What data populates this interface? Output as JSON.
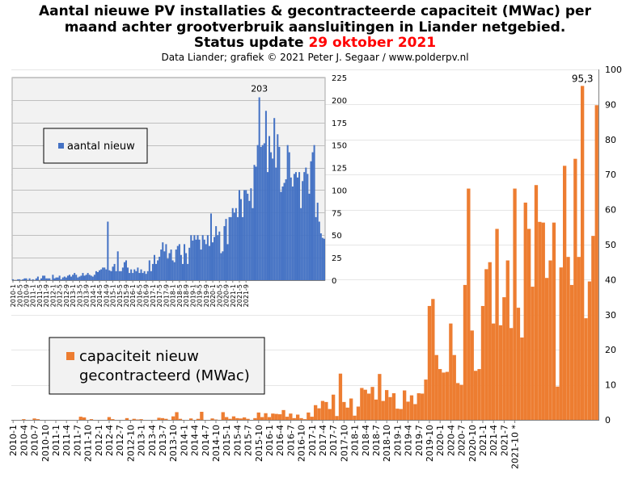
{
  "title": {
    "line1": "Aantal nieuwe PV installaties & gecontracteerde capaciteit (MWac) per",
    "line2": "maand achter grootverbruik aansluitingen in Liander netgebied.",
    "line3_prefix": "Status update ",
    "line3_date": "29 oktober 2021"
  },
  "subtitle": "Data Liander; grafiek © 2021 Peter J. Segaar / www.polderpv.nl",
  "colors": {
    "orange": "#ED7D31",
    "blue": "#4472C4",
    "date_red": "#ff0000",
    "inset_bg": "#f2f2f2"
  },
  "chart_data": [
    {
      "type": "bar",
      "name": "capaciteit",
      "legend": "capaciteit nieuw gecontracteerd (MWac)",
      "legend_lines": [
        "capaciteit nieuw",
        "gecontracteerd (MWac)"
      ],
      "legend_placement": "left-middle",
      "start": "2010-1",
      "x_tick_labels": [
        "2010-1",
        "2010-4",
        "2010-7",
        "2010-10",
        "2011-1",
        "2011-4",
        "2011-7",
        "2011-10",
        "2012-1",
        "2012-4",
        "2012-7",
        "2012-10",
        "2013-1",
        "2013-4",
        "2013-7",
        "2013-10",
        "2014-1",
        "2014-4",
        "2014-7",
        "2014-10",
        "2015-1",
        "2015-4",
        "2015-7",
        "2015-10",
        "2016-1",
        "2016-4",
        "2016-7",
        "2016-10",
        "2017-1",
        "2017-4",
        "2017-7",
        "2017-10",
        "2018-1",
        "2018-4",
        "2018-7",
        "2018-10",
        "2019-1",
        "2019-4",
        "2019-7",
        "2019-10",
        "2020-1",
        "2020-4",
        "2020-7",
        "2020-10",
        "2021-1",
        "2021-4",
        "2021-7",
        "2021-10 *"
      ],
      "values": [
        0,
        0,
        0,
        0.2,
        0,
        0,
        0.4,
        0.2,
        0,
        0,
        0,
        0,
        0,
        0,
        0,
        0,
        0,
        0,
        0,
        0.9,
        0.7,
        0,
        0.2,
        0,
        0,
        0,
        0,
        0.8,
        0.2,
        0,
        0,
        0,
        0.5,
        0,
        0.3,
        0.1,
        0.2,
        0,
        0,
        0,
        0,
        0.6,
        0.5,
        0.3,
        0,
        1.0,
        2.2,
        0.3,
        0,
        0,
        0.4,
        0,
        0.3,
        2.3,
        0,
        0,
        0.4,
        0.1,
        0,
        2.2,
        0.8,
        0.3,
        1.0,
        0.5,
        0.4,
        0.7,
        0.3,
        0,
        0.5,
        2.1,
        0.8,
        1.9,
        0.8,
        1.8,
        1.7,
        1.6,
        2.8,
        0.9,
        1.8,
        0.5,
        1.5,
        0.5,
        0.2,
        2.1,
        0.9,
        4.2,
        3.3,
        5.4,
        5.1,
        3.1,
        7.2,
        1.1,
        13.2,
        5.1,
        3.5,
        6.1,
        1.2,
        3.8,
        9.1,
        8.6,
        7.5,
        9.4,
        5.8,
        13.1,
        5.4,
        8.5,
        6.5,
        7.6,
        3.2,
        3.1,
        8.4,
        5.2,
        7.0,
        4.5,
        7.6,
        7.5,
        11.5,
        32.5,
        34.5,
        18.5,
        14.5,
        13.5,
        13.7,
        27.5,
        18.5,
        10.5,
        10.0,
        38.5,
        66.0,
        25.5,
        14.0,
        14.5,
        32.5,
        43.0,
        45.0,
        27.5,
        54.5,
        27.0,
        35.0,
        45.5,
        26.2,
        66.0,
        32.0,
        23.5,
        62.0,
        54.5,
        38.0,
        67.0,
        56.5,
        56.3,
        40.5,
        45.5,
        56.3,
        9.5,
        43.5,
        72.5,
        46.5,
        38.5,
        74.5,
        46.5,
        95.3,
        29.0,
        39.5,
        52.5,
        89.8
      ],
      "y_ticks": [
        0,
        10,
        20,
        30,
        40,
        50,
        60,
        70,
        80,
        90,
        100
      ],
      "y_axis_side": "right",
      "ylim": [
        0,
        100
      ],
      "annotation": "95,3"
    },
    {
      "type": "bar",
      "name": "aantal",
      "legend": "aantal nieuw",
      "legend_placement": "top-left",
      "start": "2010-1",
      "x_tick_labels": [
        "2010-1",
        "2010-5",
        "2010-9",
        "2011-1",
        "2011-5",
        "2011-9",
        "2012-1",
        "2012-5",
        "2012-9",
        "2013-1",
        "2013-5",
        "2013-9",
        "2014-1",
        "2014-5",
        "2014-9",
        "2015-1",
        "2015-5",
        "2015-9",
        "2016-1",
        "2016-5",
        "2016-9",
        "2017-1",
        "2017-5",
        "2017-9",
        "2018-1",
        "2018-5",
        "2018-9",
        "2019-1",
        "2019-5",
        "2019-9",
        "2020-1",
        "2020-5",
        "2020-9",
        "2021-1",
        "2021-5",
        "2021-9"
      ],
      "values": [
        1,
        0,
        0,
        1,
        1,
        0,
        1,
        2,
        2,
        0,
        2,
        0,
        1,
        0,
        2,
        4,
        0,
        2,
        5,
        5,
        2,
        2,
        2,
        0,
        6,
        2,
        3,
        3,
        5,
        1,
        3,
        4,
        3,
        5,
        6,
        4,
        6,
        8,
        6,
        3,
        4,
        5,
        8,
        5,
        6,
        8,
        6,
        5,
        4,
        6,
        10,
        9,
        11,
        12,
        14,
        14,
        12,
        65,
        11,
        10,
        15,
        18,
        10,
        32,
        10,
        10,
        14,
        20,
        22,
        14,
        8,
        12,
        8,
        12,
        10,
        14,
        8,
        12,
        8,
        10,
        7,
        10,
        22,
        10,
        18,
        28,
        18,
        22,
        26,
        34,
        42,
        32,
        40,
        24,
        30,
        34,
        22,
        20,
        34,
        38,
        40,
        28,
        18,
        40,
        30,
        18,
        36,
        50,
        44,
        50,
        45,
        50,
        45,
        34,
        50,
        45,
        40,
        50,
        38,
        74,
        42,
        48,
        60,
        50,
        54,
        30,
        32,
        60,
        68,
        40,
        70,
        70,
        80,
        75,
        80,
        70,
        100,
        90,
        70,
        100,
        100,
        96,
        88,
        102,
        80,
        128,
        126,
        150,
        203,
        148,
        150,
        152,
        188,
        120,
        160,
        142,
        135,
        180,
        125,
        162,
        148,
        98,
        104,
        108,
        112,
        150,
        142,
        114,
        104,
        118,
        120,
        114,
        120,
        80,
        110,
        120,
        125,
        118,
        96,
        132,
        142,
        150,
        70,
        86,
        65,
        52,
        47,
        46
      ],
      "y_ticks": [
        0,
        25,
        50,
        75,
        100,
        125,
        150,
        175,
        200,
        225
      ],
      "y_axis_side": "right",
      "ylim": [
        0,
        225
      ],
      "annotation": "203"
    }
  ]
}
